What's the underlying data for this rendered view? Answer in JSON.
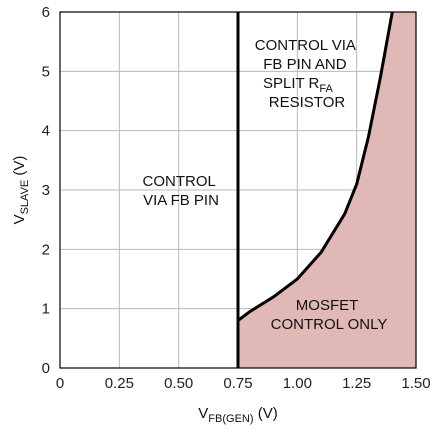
{
  "chart_data": {
    "type": "line",
    "x_label": {
      "main": "V",
      "sub": "FB(GEN)",
      "unit": " (V)"
    },
    "y_label": {
      "main": "V",
      "sub": "SLAVE",
      "unit": " (V)"
    },
    "x_ticks": [
      "0",
      "0.25",
      "0.50",
      "0.75",
      "1.00",
      "1.25",
      "1.50"
    ],
    "y_ticks": [
      "0",
      "1",
      "2",
      "3",
      "4",
      "5",
      "6"
    ],
    "xlim": [
      0,
      1.5
    ],
    "ylim": [
      0,
      6
    ],
    "grid": true,
    "boundary_x": 0.75,
    "curve": {
      "x": [
        0.75,
        0.8,
        0.9,
        1.0,
        1.1,
        1.2,
        1.25,
        1.3,
        1.35,
        1.4
      ],
      "y": [
        0.8,
        0.95,
        1.2,
        1.5,
        1.95,
        2.6,
        3.1,
        3.9,
        4.9,
        6.0
      ]
    },
    "shade_color": "#e0b9b7",
    "line_color": "#000000",
    "regions": [
      {
        "name": "region-label-fb-pin",
        "lines": [
          "CONTROL",
          "VIA FB PIN"
        ]
      },
      {
        "name": "region-label-split-resistor",
        "lines": [
          "CONTROL VIA",
          "FB PIN AND"
        ],
        "split": {
          "pre": "SPLIT R",
          "sub": "FA"
        },
        "last": "RESISTOR"
      },
      {
        "name": "region-label-mosfet",
        "lines": [
          "MOSFET",
          "CONTROL ONLY"
        ]
      }
    ]
  }
}
